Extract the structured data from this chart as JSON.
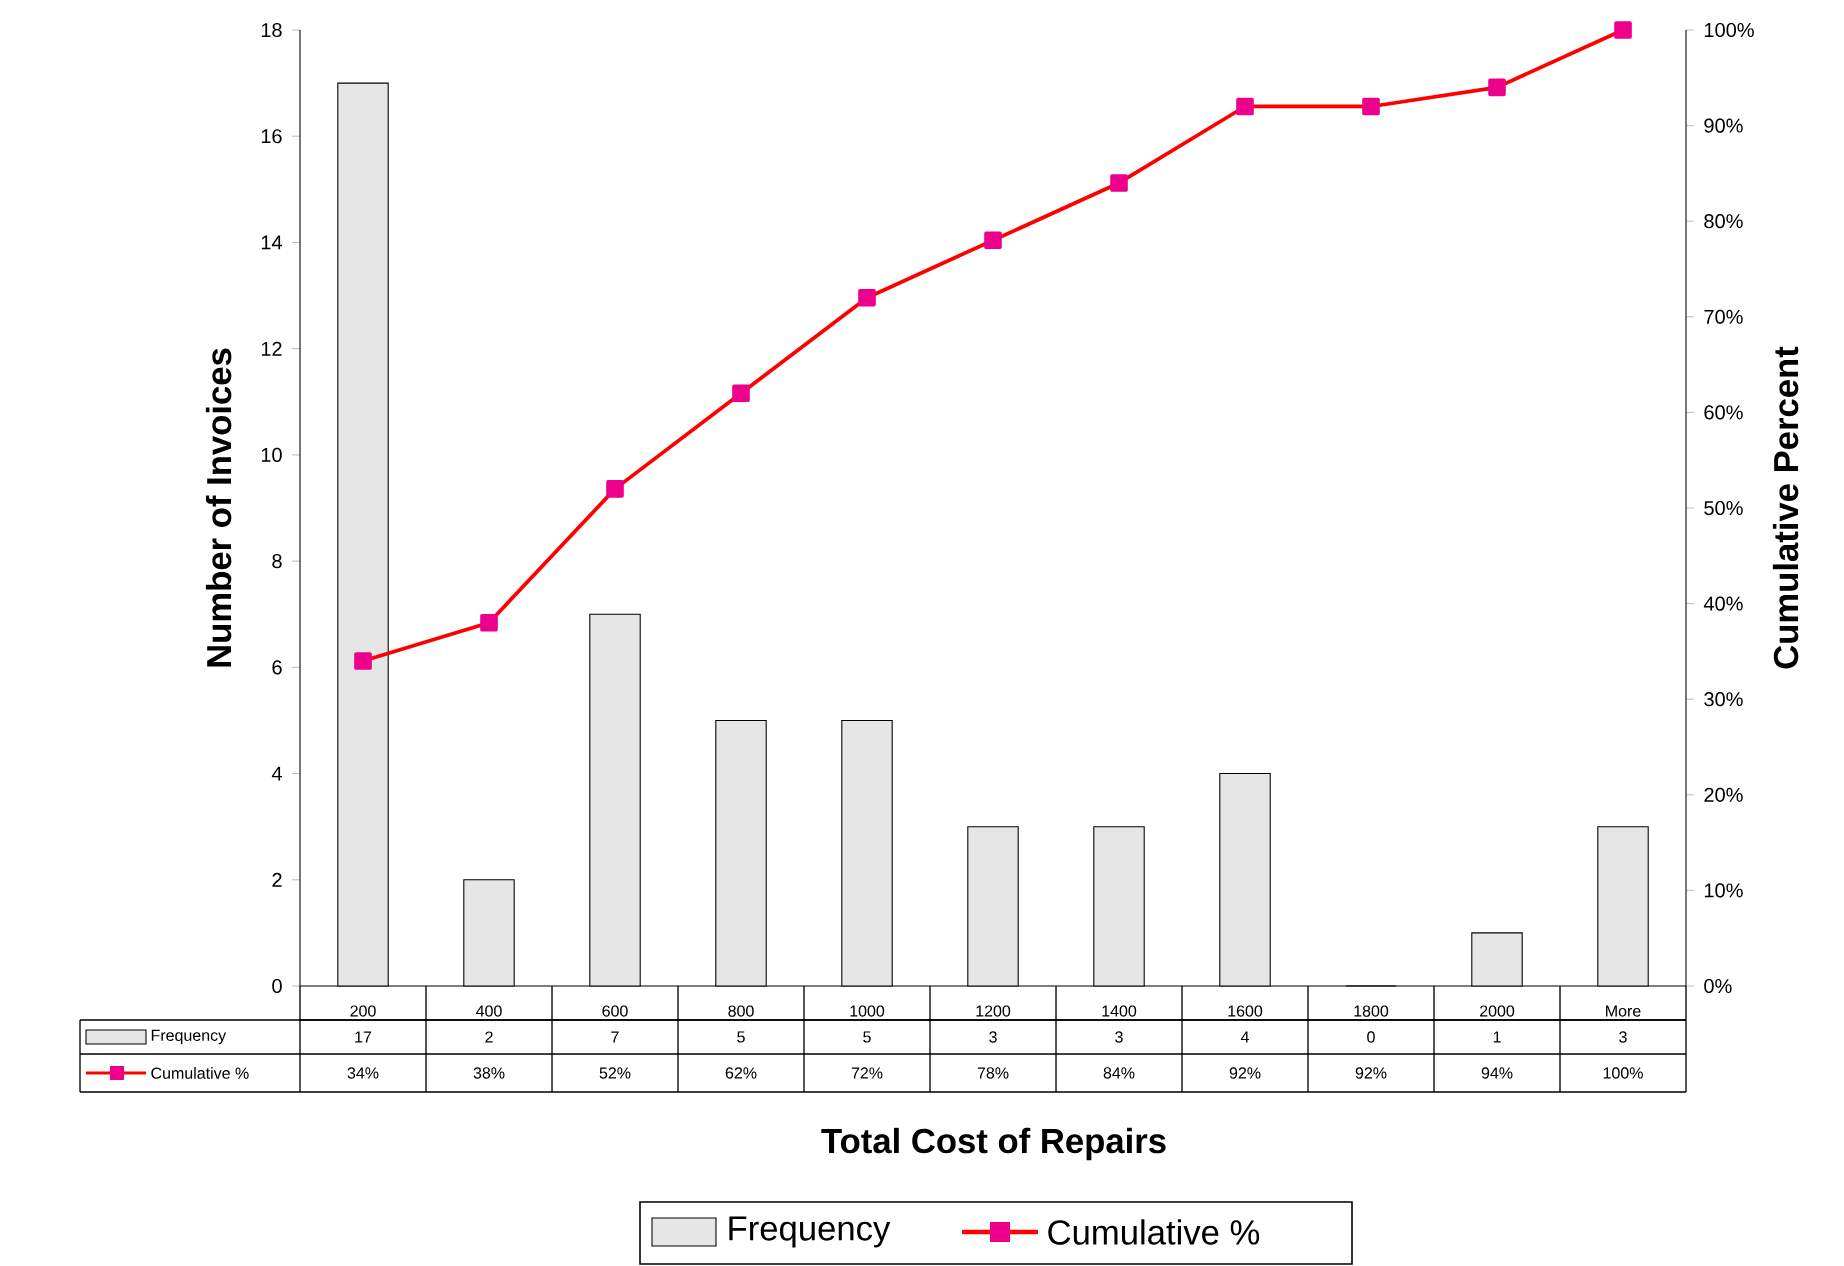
{
  "chart_data": {
    "type": "bar",
    "xlabel": "Total Cost of Repairs",
    "ylabel": "Number of Invoices",
    "y2label": "Cumulative Percent",
    "categories": [
      "200",
      "400",
      "600",
      "800",
      "1000",
      "1200",
      "1400",
      "1600",
      "1800",
      "2000",
      "More"
    ],
    "series": [
      {
        "name": "Frequency",
        "color": "#e6e6e6",
        "values": [
          17,
          2,
          7,
          5,
          5,
          3,
          3,
          4,
          0,
          1,
          3
        ],
        "value_labels": [
          "17",
          "2",
          "7",
          "5",
          "5",
          "3",
          "3",
          "4",
          "0",
          "1",
          "3"
        ]
      },
      {
        "name": "Cumulative %",
        "type": "line",
        "axis": "y2",
        "color": "#ff0000",
        "values": [
          34,
          38,
          52,
          62,
          72,
          78,
          84,
          92,
          92,
          94,
          100
        ],
        "value_labels": [
          "34%",
          "38%",
          "52%",
          "62%",
          "72%",
          "78%",
          "84%",
          "92%",
          "92%",
          "94%",
          "100%"
        ]
      }
    ],
    "ylim": [
      0,
      18
    ],
    "yticks": [
      0,
      2,
      4,
      6,
      8,
      10,
      12,
      14,
      16,
      18
    ],
    "y2lim": [
      0,
      100
    ],
    "y2ticks": [
      {
        "value": 0,
        "label": "0%"
      },
      {
        "value": 10,
        "label": "10%"
      },
      {
        "value": 20,
        "label": "20%"
      },
      {
        "value": 30,
        "label": "30%"
      },
      {
        "value": 40,
        "label": "40%"
      },
      {
        "value": 50,
        "label": "50%"
      },
      {
        "value": 60,
        "label": "60%"
      },
      {
        "value": 70,
        "label": "70%"
      },
      {
        "value": 80,
        "label": "80%"
      },
      {
        "value": 90,
        "label": "90%"
      },
      {
        "value": 100,
        "label": "100%"
      }
    ],
    "marker": "square",
    "legend": "bottom"
  }
}
